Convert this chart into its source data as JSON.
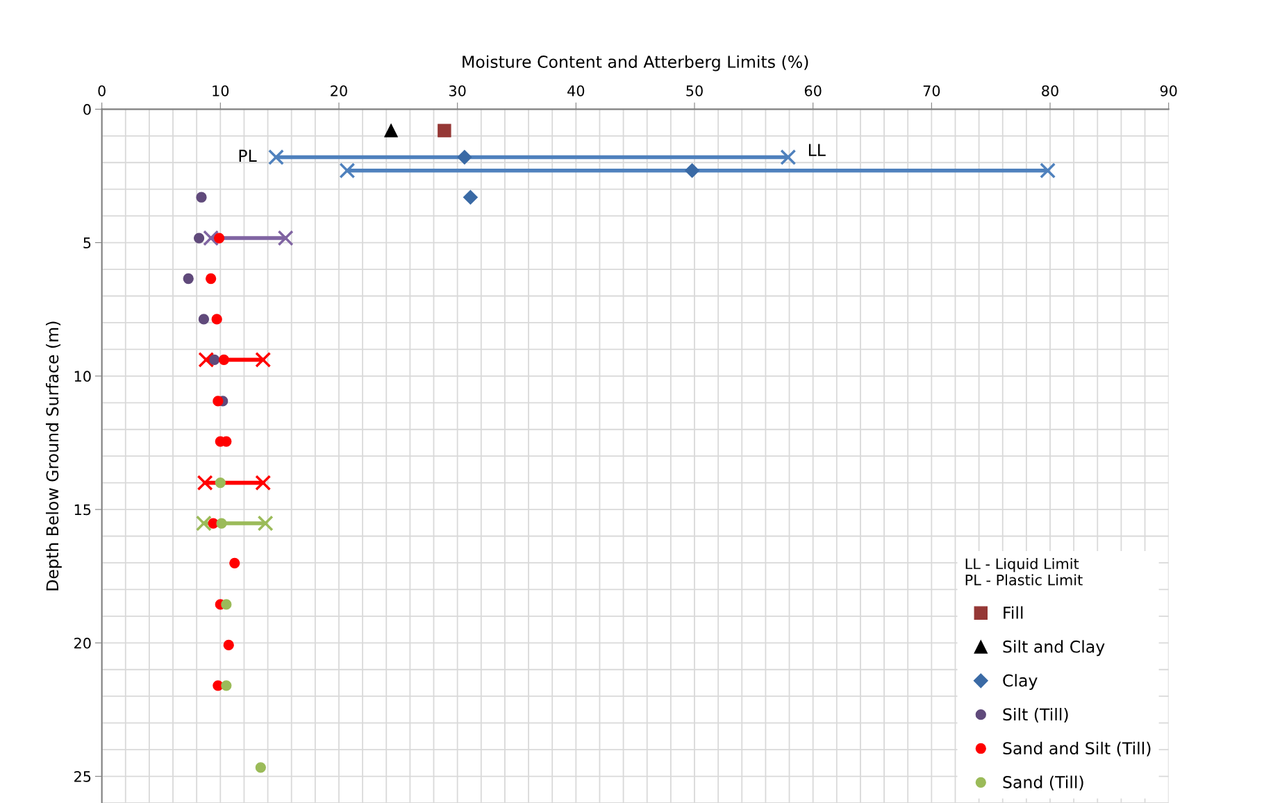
{
  "chart_data": {
    "type": "scatter",
    "xlabel": "Moisture Content and Atterberg Limits (%)",
    "ylabel": "Depth Below Ground Surface (m)",
    "legend_title": "LL - Liquid Limit\nPL - Plastic Limit",
    "xlim": [
      0,
      90
    ],
    "xticks": [
      0,
      10,
      20,
      30,
      40,
      50,
      60,
      70,
      80,
      90
    ],
    "ylim": [
      26,
      0
    ],
    "yticks": [
      0,
      5,
      10,
      15,
      20,
      25
    ],
    "grid": true,
    "legend": "bottom right",
    "annotations": [
      {
        "text": "PL",
        "x": 14.7,
        "y": 1.8
      },
      {
        "text": "LL",
        "x": 57.9,
        "y": 1.8
      }
    ],
    "series": [
      {
        "type": "line",
        "marker": "cross",
        "color": "#4f81bd",
        "x": [
          14.7,
          57.9
        ],
        "values": [
          1.8,
          1.8
        ]
      },
      {
        "type": "line",
        "marker": "cross",
        "color": "#4f81bd",
        "x": [
          20.7,
          79.8
        ],
        "values": [
          2.3,
          2.3
        ]
      },
      {
        "type": "line",
        "marker": "cross",
        "color": "#8064a2",
        "x": [
          9.2,
          15.5
        ],
        "values": [
          4.83,
          4.83
        ]
      },
      {
        "type": "line",
        "marker": "cross",
        "color": "#ff0000",
        "x": [
          8.8,
          13.6
        ],
        "values": [
          9.39,
          9.39
        ]
      },
      {
        "type": "line",
        "marker": "cross",
        "color": "#ff0000",
        "x": [
          8.7,
          13.6
        ],
        "values": [
          14.0,
          14.0
        ]
      },
      {
        "type": "line",
        "marker": "cross",
        "color": "#9bbb59",
        "x": [
          8.6,
          13.8
        ],
        "values": [
          15.52,
          15.52
        ]
      },
      {
        "name": "Fill",
        "marker": "square",
        "color": "#953735",
        "x": [
          28.9
        ],
        "values": [
          0.8
        ]
      },
      {
        "name": "Silt and Clay",
        "marker": "triangle",
        "color": "#000000",
        "x": [
          24.4
        ],
        "values": [
          0.8
        ]
      },
      {
        "name": "Clay",
        "marker": "diamond",
        "color": "#3a6aa5",
        "x": [
          30.6,
          49.8,
          31.1
        ],
        "values": [
          1.8,
          2.3,
          3.3
        ]
      },
      {
        "name": "Silt (Till)",
        "marker": "circle",
        "color": "#604a7b",
        "x": [
          8.4,
          8.2,
          7.3,
          8.6,
          9.5,
          10.2
        ],
        "values": [
          3.3,
          4.83,
          6.35,
          7.87,
          9.39,
          10.94
        ]
      },
      {
        "name": "Sand and Silt (Till)",
        "marker": "circle",
        "color": "#ff0000",
        "x": [
          9.9,
          9.2,
          9.7,
          10.3,
          9.8,
          10.0,
          10.5,
          9.4,
          11.2,
          10.0,
          10.7,
          9.8
        ],
        "values": [
          4.83,
          6.35,
          7.87,
          9.39,
          10.94,
          12.45,
          12.45,
          15.52,
          17.01,
          18.56,
          20.08,
          21.6
        ]
      },
      {
        "name": "Sand (Till)",
        "marker": "circle",
        "color": "#9bbb59",
        "x": [
          10.0,
          10.1,
          10.5,
          10.5,
          13.4
        ],
        "values": [
          14.0,
          15.52,
          18.56,
          21.6,
          24.67
        ]
      }
    ]
  }
}
